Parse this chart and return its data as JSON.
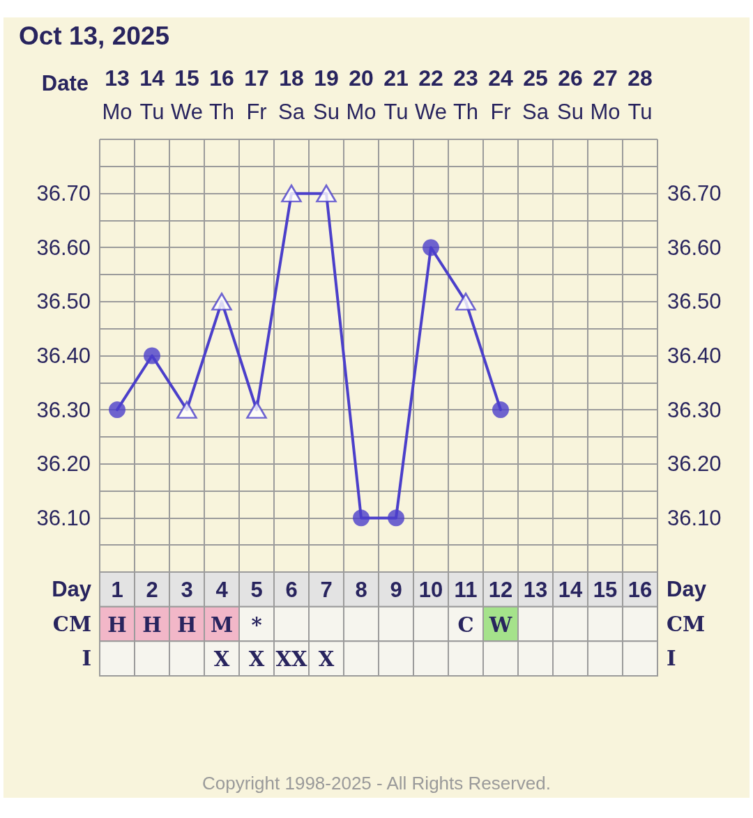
{
  "chart_data": [
    {
      "type": "line",
      "title": "Oct 13, 2025",
      "x2label": "Date",
      "categories": [
        "Mo",
        "Tu",
        "We",
        "Th",
        "Fr",
        "Sa",
        "Su",
        "Mo",
        "Tu",
        "We",
        "Th",
        "Fr",
        "Sa",
        "Su",
        "Mo",
        "Tu"
      ],
      "x2lim": [
        12.5,
        28.5
      ],
      "x2ticks": [
        13,
        14,
        15,
        16,
        17,
        18,
        19,
        20,
        21,
        22,
        23,
        24,
        25,
        26,
        27,
        28
      ],
      "ylim": [
        36.0,
        36.8
      ],
      "yticks": [
        {
          "value": 36.05,
          "label": null
        },
        {
          "value": 36.1,
          "label": "36.10"
        },
        {
          "value": 36.15,
          "label": null
        },
        {
          "value": 36.2,
          "label": "36.20"
        },
        {
          "value": 36.25,
          "label": null
        },
        {
          "value": 36.3,
          "label": "36.30"
        },
        {
          "value": 36.35,
          "label": null
        },
        {
          "value": 36.4,
          "label": "36.40"
        },
        {
          "value": 36.45,
          "label": null
        },
        {
          "value": 36.5,
          "label": "36.50"
        },
        {
          "value": 36.55,
          "label": null
        },
        {
          "value": 36.6,
          "label": "36.60"
        },
        {
          "value": 36.65,
          "label": null
        },
        {
          "value": 36.7,
          "label": "36.70"
        },
        {
          "value": 36.75,
          "label": null
        },
        {
          "value": 36.8,
          "label": null
        }
      ],
      "y2lim": [
        36.0,
        36.8
      ],
      "y2ticks": [
        {
          "value": 36.05,
          "label": null
        },
        {
          "value": 36.1,
          "label": "36.10"
        },
        {
          "value": 36.15,
          "label": null
        },
        {
          "value": 36.2,
          "label": "36.20"
        },
        {
          "value": 36.25,
          "label": null
        },
        {
          "value": 36.3,
          "label": "36.30"
        },
        {
          "value": 36.35,
          "label": null
        },
        {
          "value": 36.4,
          "label": "36.40"
        },
        {
          "value": 36.45,
          "label": null
        },
        {
          "value": 36.5,
          "label": "36.50"
        },
        {
          "value": 36.55,
          "label": null
        },
        {
          "value": 36.6,
          "label": "36.60"
        },
        {
          "value": 36.65,
          "label": null
        },
        {
          "value": 36.7,
          "label": "36.70"
        },
        {
          "value": 36.75,
          "label": null
        },
        {
          "value": 36.8,
          "label": null
        }
      ],
      "series": [
        {
          "type": "line",
          "color": "#4b3fca",
          "marker": "none",
          "values": [
            36.3,
            36.4,
            36.3,
            36.5,
            36.3,
            36.7,
            36.7,
            36.1,
            36.1,
            36.6,
            36.5,
            36.3,
            null,
            null,
            null,
            null
          ]
        },
        {
          "type": "scatter",
          "color": "#4b3fca",
          "marker": "circle",
          "values": [
            36.3,
            36.4,
            null,
            null,
            null,
            null,
            null,
            36.1,
            36.1,
            36.6,
            null,
            36.3,
            null,
            null,
            null,
            null
          ]
        },
        {
          "type": "scatter",
          "color": "#4b3fca",
          "marker": "triangle",
          "values": [
            null,
            null,
            36.3,
            36.5,
            36.3,
            36.7,
            36.7,
            null,
            null,
            null,
            36.5,
            null,
            null,
            null,
            null,
            null
          ]
        }
      ],
      "grid": true,
      "line_style": "solid"
    },
    {
      "type": "heatmap",
      "categories": [
        null,
        null,
        null,
        null,
        null,
        null,
        null,
        null,
        null,
        null,
        null,
        null,
        null,
        null,
        null,
        null
      ],
      "y_categories": [
        "Day",
        "CM",
        "I"
      ],
      "y2_categories": [
        "Day",
        "CM",
        "I"
      ],
      "cells": [
        [
          null,
          null,
          null,
          null,
          null,
          null,
          null,
          null,
          null,
          null,
          null,
          null,
          null,
          null,
          null,
          null
        ],
        [
          null,
          null,
          null,
          null,
          null,
          null,
          null,
          null,
          null,
          null,
          null,
          null,
          null,
          null,
          null,
          null
        ],
        [
          null,
          null,
          null,
          null,
          null,
          null,
          null,
          null,
          null,
          null,
          null,
          null,
          null,
          null,
          null,
          null
        ]
      ],
      "cell_labels": [
        [
          "1",
          "2",
          "3",
          "4",
          "5",
          "6",
          "7",
          "8",
          "9",
          "10",
          "11",
          "12",
          "13",
          "14",
          "15",
          "16"
        ],
        [
          "H",
          "H",
          "H",
          "M",
          "*",
          null,
          null,
          null,
          null,
          null,
          "C",
          "W",
          null,
          null,
          null,
          null
        ],
        [
          null,
          null,
          null,
          "X",
          "X",
          "XX",
          "X",
          null,
          null,
          null,
          null,
          null,
          null,
          null,
          null,
          null
        ]
      ],
      "colors": [
        [
          "#e3e3e3",
          "#e3e3e3",
          "#e3e3e3",
          "#e3e3e3",
          "#e3e3e3",
          "#e3e3e3",
          "#e3e3e3",
          "#e3e3e3",
          "#e3e3e3",
          "#e3e3e3",
          "#e3e3e3",
          "#e3e3e3",
          "#e3e3e3",
          "#e3e3e3",
          "#e3e3e3",
          "#e3e3e3"
        ],
        [
          "#f2b7c8",
          "#f2b7c8",
          "#f2b7c8",
          "#f2b7c8",
          "#f6f5ee",
          "#f6f5ee",
          "#f6f5ee",
          "#f6f5ee",
          "#f6f5ee",
          "#f6f5ee",
          "#f6f5ee",
          "#a5e28b",
          "#f6f5ee",
          "#f6f5ee",
          "#f6f5ee",
          "#f6f5ee"
        ],
        [
          "#f6f5ee",
          "#f6f5ee",
          "#f6f5ee",
          "#f6f5ee",
          "#f6f5ee",
          "#f6f5ee",
          "#f6f5ee",
          "#f6f5ee",
          "#f6f5ee",
          "#f6f5ee",
          "#f6f5ee",
          "#f6f5ee",
          "#f6f5ee",
          "#f6f5ee",
          "#f6f5ee",
          "#f6f5ee"
        ]
      ],
      "annotations": [
        "Copyright 1998-2025 - All Rights Reserved."
      ]
    }
  ]
}
